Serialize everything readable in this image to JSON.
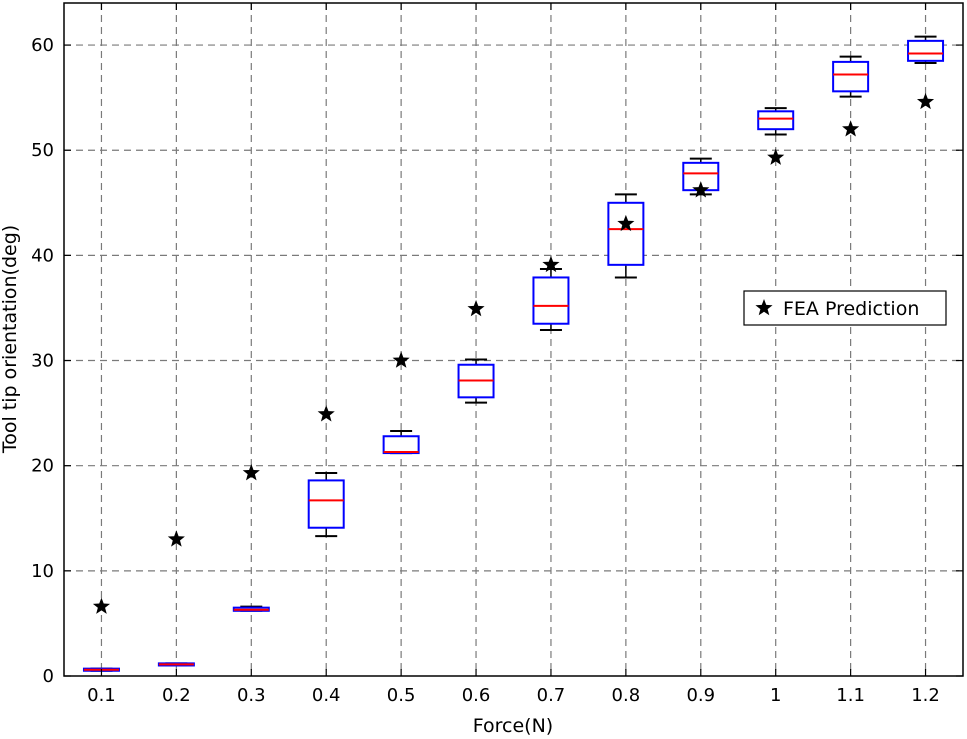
{
  "chart_data": {
    "type": "box",
    "xlabel": "Force(N)",
    "ylabel": "Tool tip orientation(deg)",
    "categories": [
      "0.1",
      "0.2",
      "0.3",
      "0.4",
      "0.5",
      "0.6",
      "0.7",
      "0.8",
      "0.9",
      "1",
      "1.1",
      "1.2"
    ],
    "ylim": [
      0,
      64
    ],
    "yticks": [
      0,
      10,
      20,
      30,
      40,
      50,
      60
    ],
    "grid": true,
    "legend": {
      "position": "right-middle",
      "entries": [
        "FEA Prediction"
      ]
    },
    "boxes": [
      {
        "whisker_low": 0.5,
        "q1": 0.5,
        "median": 0.6,
        "q3": 0.7,
        "whisker_high": 0.7
      },
      {
        "whisker_low": 1.0,
        "q1": 1.0,
        "median": 1.1,
        "q3": 1.2,
        "whisker_high": 1.2
      },
      {
        "whisker_low": 6.2,
        "q1": 6.2,
        "median": 6.3,
        "q3": 6.5,
        "whisker_high": 6.6
      },
      {
        "whisker_low": 13.3,
        "q1": 14.1,
        "median": 16.7,
        "q3": 18.6,
        "whisker_high": 19.3
      },
      {
        "whisker_low": 21.2,
        "q1": 21.2,
        "median": 21.3,
        "q3": 22.8,
        "whisker_high": 23.3
      },
      {
        "whisker_low": 26.0,
        "q1": 26.5,
        "median": 28.1,
        "q3": 29.6,
        "whisker_high": 30.1
      },
      {
        "whisker_low": 32.9,
        "q1": 33.5,
        "median": 35.2,
        "q3": 37.9,
        "whisker_high": 38.7
      },
      {
        "whisker_low": 37.9,
        "q1": 39.1,
        "median": 42.5,
        "q3": 45.0,
        "whisker_high": 45.8
      },
      {
        "whisker_low": 45.8,
        "q1": 46.2,
        "median": 47.8,
        "q3": 48.8,
        "whisker_high": 49.2
      },
      {
        "whisker_low": 51.5,
        "q1": 52.0,
        "median": 53.0,
        "q3": 53.7,
        "whisker_high": 54.0
      },
      {
        "whisker_low": 55.1,
        "q1": 55.6,
        "median": 57.2,
        "q3": 58.4,
        "whisker_high": 58.9
      },
      {
        "whisker_low": 58.3,
        "q1": 58.5,
        "median": 59.2,
        "q3": 60.4,
        "whisker_high": 60.8
      }
    ],
    "series": [
      {
        "name": "FEA Prediction",
        "marker": "star",
        "values": [
          6.6,
          13.0,
          19.3,
          24.9,
          30.0,
          34.9,
          39.1,
          43.0,
          46.2,
          49.3,
          52.0,
          54.6
        ]
      }
    ],
    "colors": {
      "box": "#0000ff",
      "median": "#ff0000",
      "whisker": "#000000",
      "marker": "#000000",
      "grid": "#7a7a7a"
    }
  }
}
